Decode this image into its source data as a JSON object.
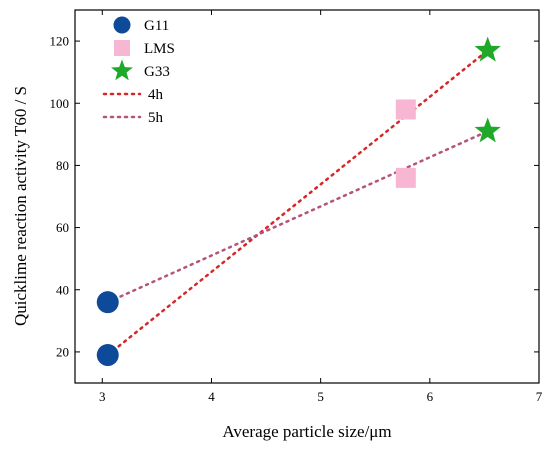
{
  "chart_data": {
    "type": "scatter",
    "xlabel": "Average particle size/μm",
    "ylabel": "Quicklime reaction activity T60 / S",
    "xlim": [
      2.75,
      7
    ],
    "ylim": [
      10,
      130
    ],
    "xticks": [
      3,
      4,
      5,
      6,
      7
    ],
    "yticks": [
      20,
      40,
      60,
      80,
      100,
      120
    ],
    "xtick_labels": [
      "3",
      "4",
      "5",
      "6",
      "7"
    ],
    "ytick_labels": [
      "20",
      "40",
      "60",
      "80",
      "100",
      "120"
    ],
    "grid": false,
    "legend_position": "top-left",
    "series": [
      {
        "name": "G11",
        "marker": "circle",
        "color": "#0d4a9a",
        "points": [
          {
            "x": 3.05,
            "y": 19
          },
          {
            "x": 3.05,
            "y": 36
          }
        ]
      },
      {
        "name": "LMS",
        "marker": "square",
        "color": "#f7b6d2",
        "points": [
          {
            "x": 5.78,
            "y": 76
          },
          {
            "x": 5.78,
            "y": 98
          }
        ]
      },
      {
        "name": "G33",
        "marker": "star",
        "color": "#1eaa28",
        "points": [
          {
            "x": 6.53,
            "y": 91
          },
          {
            "x": 6.53,
            "y": 117
          }
        ]
      }
    ],
    "lines": [
      {
        "name": "4h",
        "style": "dotted",
        "color": "#d62728",
        "points": [
          {
            "x": 3.05,
            "y": 19
          },
          {
            "x": 6.53,
            "y": 117
          }
        ]
      },
      {
        "name": "5h",
        "style": "dotted",
        "color": "#b5537a",
        "points": [
          {
            "x": 3.05,
            "y": 36
          },
          {
            "x": 6.53,
            "y": 91
          }
        ]
      }
    ]
  }
}
